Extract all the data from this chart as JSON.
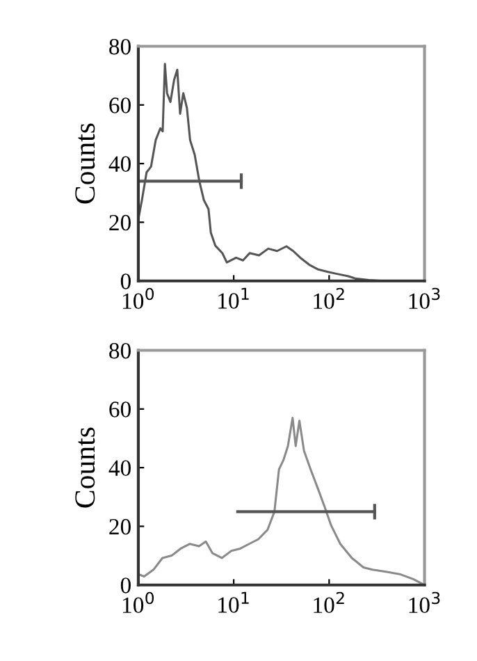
{
  "chart_data": [
    {
      "type": "line",
      "ylabel": "Counts",
      "log": "x",
      "xlim": [
        1,
        1000
      ],
      "ylim": [
        0,
        80
      ],
      "grid": false,
      "legend": false,
      "marker": "none",
      "xticks": [
        {
          "value": 1,
          "label": "10$^{0}$"
        },
        {
          "value": 10,
          "label": "10$^{1}$"
        },
        {
          "value": 100,
          "label": "10$^{2}$"
        },
        {
          "value": 1000,
          "label": "10$^{3}$"
        }
      ],
      "yticks": [
        0,
        20,
        40,
        60,
        80
      ],
      "series": [
        {
          "color": "#555555",
          "x": [
            1,
            1.09,
            1.22,
            1.36,
            1.52,
            1.7,
            1.8,
            1.9,
            2.0,
            2.17,
            2.37,
            2.56,
            2.74,
            2.96,
            3.23,
            3.49,
            3.9,
            4.36,
            4.87,
            5.44,
            5.75,
            6.42,
            7.59,
            8.46,
            10.6,
            12.5,
            14.7,
            18.4,
            23,
            28.5,
            35.7,
            42,
            49.9,
            62,
            77,
            97,
            121,
            159,
            189,
            261,
            365,
            1000
          ],
          "values": [
            21,
            27.5,
            37,
            39,
            48,
            52,
            51,
            74,
            64,
            61,
            68.5,
            72,
            57,
            64,
            59,
            48,
            43,
            34,
            27.5,
            24.5,
            16.5,
            12,
            9.5,
            6.3,
            7.9,
            7,
            9.5,
            8.7,
            11,
            10.2,
            11.8,
            10.2,
            7.9,
            5.5,
            3.9,
            3.1,
            2.4,
            1.6,
            0.8,
            0.3,
            0,
            0
          ]
        },
        {
          "type": "line",
          "marker": "none",
          "color": "#555555",
          "x": [
            1,
            12
          ],
          "values": [
            34,
            34
          ]
        }
      ]
    },
    {
      "type": "line",
      "ylabel": "Counts",
      "log": "x",
      "xlim": [
        1,
        1000
      ],
      "ylim": [
        0,
        80
      ],
      "grid": false,
      "legend": false,
      "marker": "none",
      "xticks": [
        {
          "value": 1,
          "label": "10$^{0}$"
        },
        {
          "value": 10,
          "label": "10$^{1}$"
        },
        {
          "value": 100,
          "label": "10$^{2}$"
        },
        {
          "value": 1000,
          "label": "10$^{3}$"
        }
      ],
      "yticks": [
        0,
        20,
        40,
        60,
        80
      ],
      "series": [
        {
          "color": "#8a8a8a",
          "x": [
            1,
            1.15,
            1.44,
            1.79,
            2.23,
            2.78,
            3.47,
            4.33,
            5.1,
            6.0,
            7.5,
            9.4,
            11.7,
            14.5,
            18.1,
            22.6,
            26.7,
            29.8,
            33.2,
            37,
            41.4,
            44.6,
            48.8,
            54.5,
            64,
            76,
            89.6,
            105,
            131,
            173,
            229,
            285,
            396,
            550,
            763,
            1000
          ],
          "values": [
            3.7,
            2.9,
            5.2,
            9.2,
            10,
            12.4,
            14,
            13.2,
            14.8,
            10.8,
            9.2,
            11.6,
            12.4,
            14,
            15.6,
            18.8,
            25,
            39.4,
            42.6,
            47.4,
            57,
            47.4,
            56,
            45.8,
            39.4,
            33,
            26.7,
            20.3,
            14,
            9.2,
            6,
            5.2,
            4.5,
            3.7,
            2,
            0
          ]
        },
        {
          "type": "line",
          "marker": "none",
          "color": "#555555",
          "x": [
            11,
            300
          ],
          "values": [
            25,
            25
          ]
        }
      ]
    }
  ]
}
